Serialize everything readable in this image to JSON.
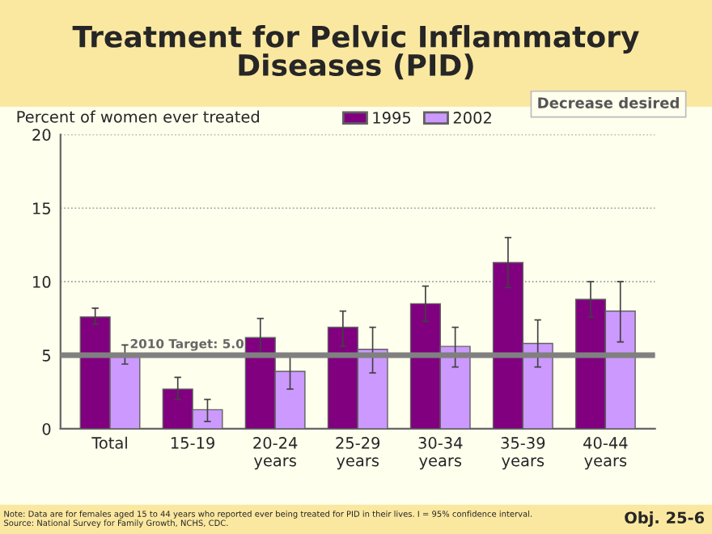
{
  "chart_data": {
    "type": "bar",
    "title": "Treatment for Pelvic Inflammatory\nDiseases (PID)",
    "ylabel": "Percent of women ever treated",
    "categories": [
      "Total",
      "15-19",
      "20-24\nyears",
      "25-29\nyears",
      "30-34\nyears",
      "35-39\nyears",
      "40-44\nyears"
    ],
    "series": [
      {
        "name": "1995",
        "color": "#800080",
        "values": [
          7.6,
          2.7,
          6.2,
          6.9,
          8.5,
          11.3,
          8.8
        ],
        "errors": [
          [
            7.1,
            8.2
          ],
          [
            2.0,
            3.5
          ],
          [
            5.0,
            7.5
          ],
          [
            5.6,
            8.0
          ],
          [
            7.3,
            9.7
          ],
          [
            9.6,
            13.0
          ],
          [
            7.6,
            10.0
          ]
        ]
      },
      {
        "name": "2002",
        "color": "#cc99ff",
        "values": [
          5.0,
          1.3,
          3.9,
          5.4,
          5.6,
          5.8,
          8.0
        ],
        "errors": [
          [
            4.4,
            5.7
          ],
          [
            0.5,
            2.0
          ],
          [
            2.7,
            4.9
          ],
          [
            3.8,
            6.9
          ],
          [
            4.2,
            6.9
          ],
          [
            4.2,
            7.4
          ],
          [
            5.9,
            10.0
          ]
        ]
      }
    ],
    "ylim": [
      0,
      20
    ],
    "yticks": [
      0,
      5,
      10,
      15,
      20
    ],
    "grid": "y",
    "legend": "top right",
    "ref_lines": [
      {
        "axis": "y",
        "value": 5.0,
        "label": "2010 Target: 5.0",
        "color": "#808080"
      }
    ],
    "annotations": [
      "Decrease desired",
      "Note: Data are for females aged 15 to 44 years who reported ever being treated for PID in their lives. I = 95% confidence interval.\nSource: National Survey for Family Growth, NCHS, CDC.",
      "Obj. 25-6"
    ]
  }
}
